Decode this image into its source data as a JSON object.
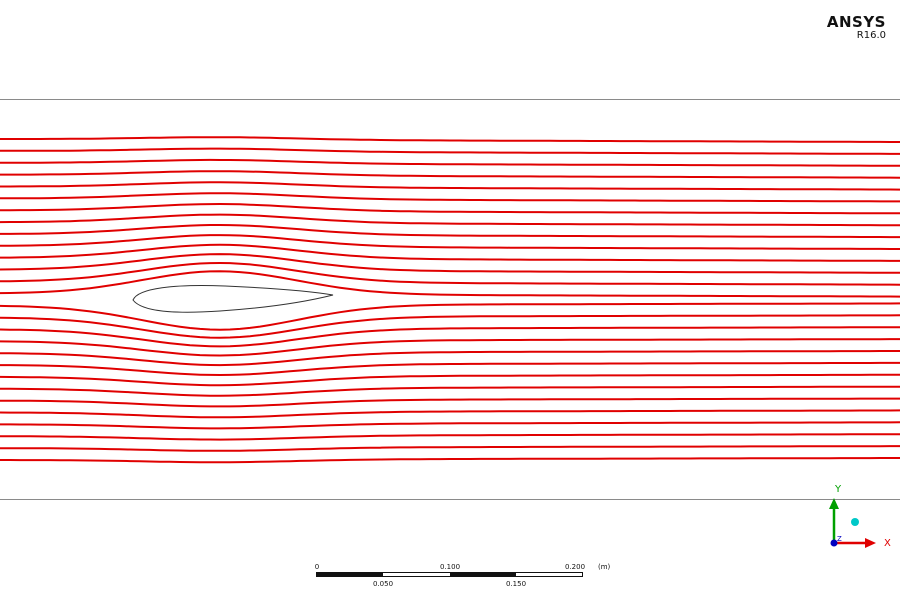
{
  "logo": {
    "brand": "ANSYS",
    "version": "R16.0"
  },
  "scale_bar": {
    "unit": "(m)",
    "top_labels": [
      "0",
      "0.100",
      "0.200"
    ],
    "bottom_labels": [
      "0.050",
      "0.150"
    ]
  },
  "triad": {
    "y_label": "Y",
    "x_label": "X",
    "z_label": "Z"
  },
  "colors": {
    "streamline": "#e00000",
    "airfoil_outline": "#333333",
    "domain_edge": "#8a8a8a",
    "triad_y": "#00a000",
    "triad_x": "#e00000",
    "triad_z": "#0000c0",
    "triad_dot": "#00c8c8"
  },
  "streamlines": {
    "count": 28
  }
}
